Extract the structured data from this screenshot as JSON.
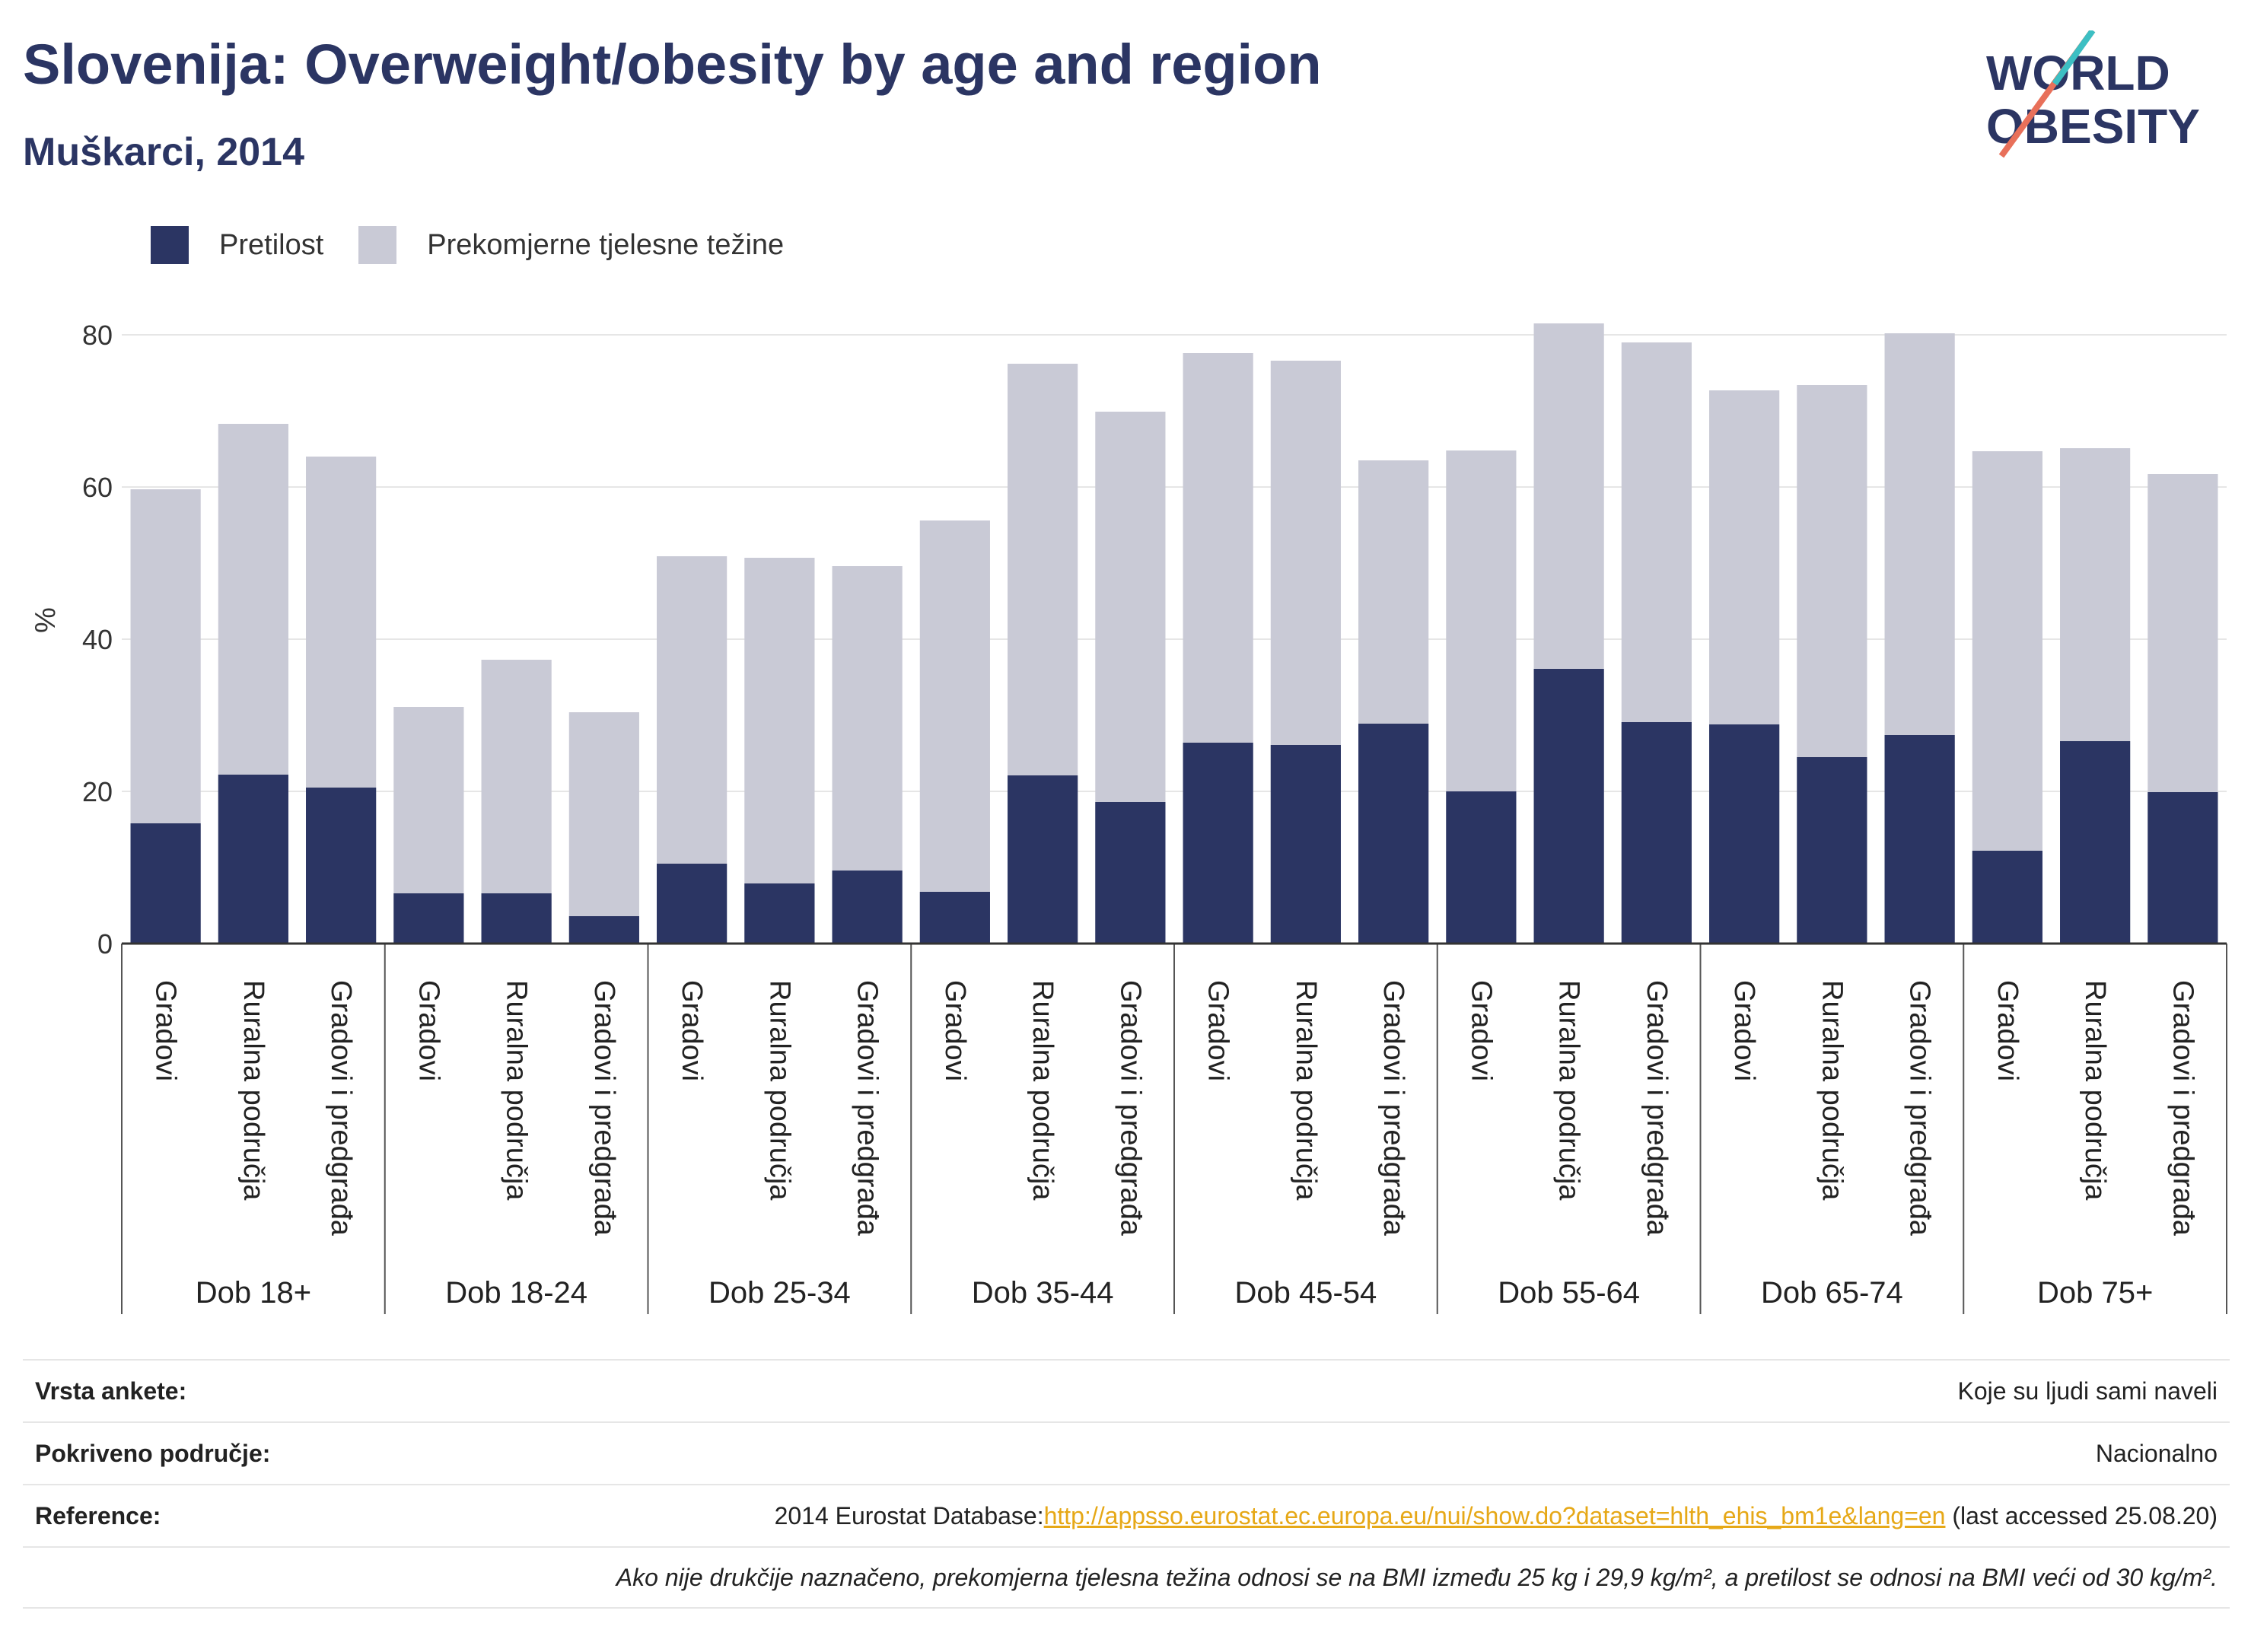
{
  "header": {
    "title": "Slovenija: Overweight/obesity by age and region",
    "subtitle": "Muškarci, 2014"
  },
  "logo": {
    "line1": "WORLD",
    "line2": "OBESITY"
  },
  "colors": {
    "obesity": "#2b3563",
    "overweight": "#c9cad6",
    "title": "#2b3563",
    "link": "#e6a817"
  },
  "legend": {
    "obesity_label": "Pretilost",
    "overweight_label": "Prekomjerne tjelesne težine"
  },
  "chart_data": {
    "type": "bar",
    "stacked": true,
    "ylabel": "%",
    "ylim": [
      0,
      85
    ],
    "yticks": [
      0,
      20,
      40,
      60,
      80
    ],
    "grid": true,
    "legend_position": "top-left",
    "groups": [
      {
        "label": "Dob 18+",
        "bars": [
          {
            "label": "Gradovi",
            "obesity": 15.8,
            "total": 59.7
          },
          {
            "label": "Ruralna područja",
            "obesity": 22.2,
            "total": 68.3
          },
          {
            "label": "Gradovi i predgrađa",
            "obesity": 20.5,
            "total": 64.0
          }
        ]
      },
      {
        "label": "Dob 18-24",
        "bars": [
          {
            "label": "Gradovi",
            "obesity": 6.6,
            "total": 31.1
          },
          {
            "label": "Ruralna područja",
            "obesity": 6.6,
            "total": 37.3
          },
          {
            "label": "Gradovi i predgrađa",
            "obesity": 3.6,
            "total": 30.4
          }
        ]
      },
      {
        "label": "Dob 25-34",
        "bars": [
          {
            "label": "Gradovi",
            "obesity": 10.5,
            "total": 50.9
          },
          {
            "label": "Ruralna područja",
            "obesity": 7.9,
            "total": 50.7
          },
          {
            "label": "Gradovi i predgrađa",
            "obesity": 9.6,
            "total": 49.6
          }
        ]
      },
      {
        "label": "Dob 35-44",
        "bars": [
          {
            "label": "Gradovi",
            "obesity": 6.8,
            "total": 55.6
          },
          {
            "label": "Ruralna područja",
            "obesity": 22.1,
            "total": 76.2
          },
          {
            "label": "Gradovi i predgrađa",
            "obesity": 18.6,
            "total": 69.9
          }
        ]
      },
      {
        "label": "Dob 45-54",
        "bars": [
          {
            "label": "Gradovi",
            "obesity": 26.4,
            "total": 77.6
          },
          {
            "label": "Ruralna područja",
            "obesity": 26.1,
            "total": 76.6
          },
          {
            "label": "Gradovi i predgrađa",
            "obesity": 28.9,
            "total": 63.5
          }
        ]
      },
      {
        "label": "Dob 55-64",
        "bars": [
          {
            "label": "Gradovi",
            "obesity": 20.0,
            "total": 64.8
          },
          {
            "label": "Ruralna područja",
            "obesity": 36.1,
            "total": 81.5
          },
          {
            "label": "Gradovi i predgrađa",
            "obesity": 29.1,
            "total": 79.0
          }
        ]
      },
      {
        "label": "Dob 65-74",
        "bars": [
          {
            "label": "Gradovi",
            "obesity": 28.8,
            "total": 72.7
          },
          {
            "label": "Ruralna područja",
            "obesity": 24.5,
            "total": 73.4
          },
          {
            "label": "Gradovi i predgrađa",
            "obesity": 27.4,
            "total": 80.2
          }
        ]
      },
      {
        "label": "Dob 75+",
        "bars": [
          {
            "label": "Gradovi",
            "obesity": 12.2,
            "total": 64.7
          },
          {
            "label": "Ruralna područja",
            "obesity": 26.6,
            "total": 65.1
          },
          {
            "label": "Gradovi i predgrađa",
            "obesity": 19.9,
            "total": 61.7
          }
        ]
      }
    ]
  },
  "footer": {
    "survey_key": "Vrsta ankete:",
    "survey_value": "Koje su ljudi sami naveli",
    "coverage_key": "Pokriveno područje:",
    "coverage_value": "Nacionalno",
    "reference_key": "Reference:",
    "reference_prefix": "2014 Eurostat Database:",
    "reference_link": "http://appsso.eurostat.ec.europa.eu/nui/show.do?dataset=hlth_ehis_bm1e&lang=en",
    "reference_suffix": " (last accessed 25.08.20)",
    "note": "Ako nije drukčije naznačeno, prekomjerna tjelesna težina odnosi se na BMI između 25 kg i 29,9 kg/m², a pretilost se odnosi na BMI veći od 30 kg/m²."
  }
}
